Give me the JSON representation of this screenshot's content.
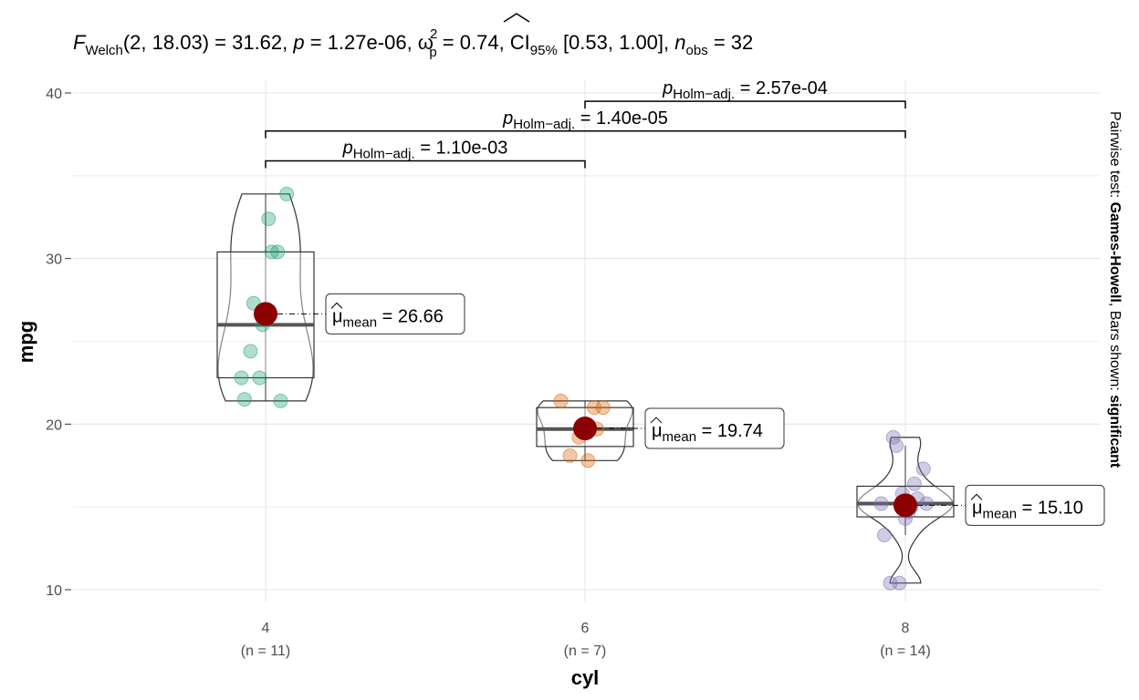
{
  "chart_data": {
    "type": "violin-box-scatter",
    "title": {
      "F": "F",
      "F_sub": "Welch",
      "stat": "(2, 18.03) = 31.62, ",
      "p": "p",
      "p_val": " = 1.27e-06, ",
      "omega": "ω",
      "omega_sup": "2",
      "omega_sub": "p",
      "omega_val": " = 0.74, CI",
      "ci_sub": "95%",
      "ci_val": " [0.53, 1.00], ",
      "n": "n",
      "n_sub": "obs",
      "n_val": " = 32"
    },
    "xlabel": "cyl",
    "ylabel": "mpg",
    "ylim": [
      8.5,
      41
    ],
    "yticks": [
      "10",
      "20",
      "30",
      "40"
    ],
    "categories": [
      "4",
      "6",
      "8"
    ],
    "n_labels": [
      "(n = 11)",
      "(n = 7)",
      "(n = 14)"
    ],
    "colors": [
      "#1B9E77",
      "#D95F02",
      "#7570B3"
    ],
    "mean_color": "#8B0000",
    "groups": [
      {
        "values": [
          22.8,
          24.4,
          22.8,
          32.4,
          30.4,
          33.9,
          21.5,
          27.3,
          26.0,
          30.4,
          21.4
        ],
        "q1": 22.8,
        "median": 26.0,
        "q3": 30.4,
        "whisker": [
          21.4,
          33.9
        ],
        "mean": 26.66,
        "mean_label": "26.66"
      },
      {
        "values": [
          21.0,
          21.0,
          21.4,
          18.1,
          19.2,
          17.8,
          19.7
        ],
        "q1": 18.65,
        "median": 19.7,
        "q3": 21.0,
        "whisker": [
          17.8,
          21.4
        ],
        "mean": 19.74,
        "mean_label": "19.74"
      },
      {
        "values": [
          18.7,
          14.3,
          16.4,
          17.3,
          15.2,
          10.4,
          10.4,
          14.7,
          15.5,
          15.2,
          13.3,
          19.2,
          15.8,
          15.0
        ],
        "q1": 14.4,
        "median": 15.2,
        "q3": 16.25,
        "whisker": [
          13.3,
          18.7
        ],
        "mean": 15.1,
        "mean_label": "15.10"
      }
    ],
    "mean_prefix": "μ",
    "mean_sub": "mean",
    "mean_eq": " = ",
    "pairwise": [
      {
        "from": 0,
        "to": 1,
        "y": 35.9,
        "p": "p",
        "sub": "Holm−adj.",
        "val": " = 1.10e-03"
      },
      {
        "from": 0,
        "to": 2,
        "y": 37.7,
        "p": "p",
        "sub": "Holm−adj.",
        "val": " = 1.40e-05"
      },
      {
        "from": 1,
        "to": 2,
        "y": 39.5,
        "p": "p",
        "sub": "Holm−adj.",
        "val": " = 2.57e-04"
      }
    ],
    "caption": {
      "a": "Pairwise test: ",
      "b": "Games-Howell",
      "c": ", Bars shown: ",
      "d": "significant"
    }
  }
}
